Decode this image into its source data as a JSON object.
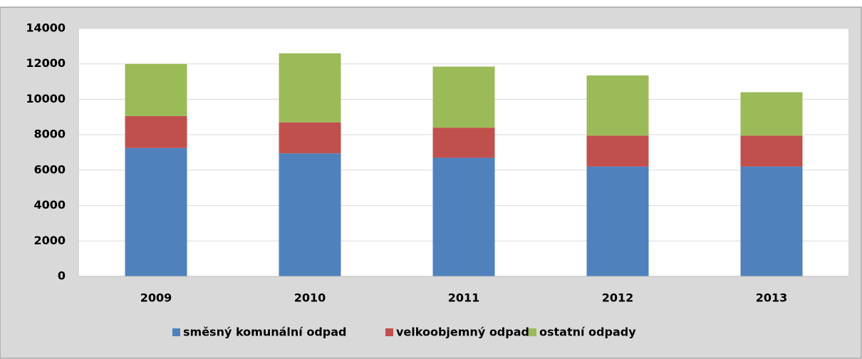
{
  "chart_data": {
    "type": "stacked_bar",
    "categories": [
      "2009",
      "2010",
      "2011",
      "2012",
      "2013"
    ],
    "series": [
      {
        "name": "směsný komunální odpad",
        "color": "#4f81bd",
        "values": [
          7250,
          6950,
          6700,
          6200,
          6200
        ]
      },
      {
        "name": "velkoobjemný odpad",
        "color": "#c0504d",
        "values": [
          1800,
          1750,
          1700,
          1750,
          1750
        ]
      },
      {
        "name": "ostatní odpady",
        "color": "#9bbb59",
        "values": [
          2950,
          3900,
          3450,
          3400,
          2450
        ]
      }
    ],
    "ylim": [
      0,
      14000
    ],
    "yticks": [
      0,
      2000,
      4000,
      6000,
      8000,
      10000,
      12000,
      14000
    ],
    "grid": true,
    "legend": "bottom"
  }
}
